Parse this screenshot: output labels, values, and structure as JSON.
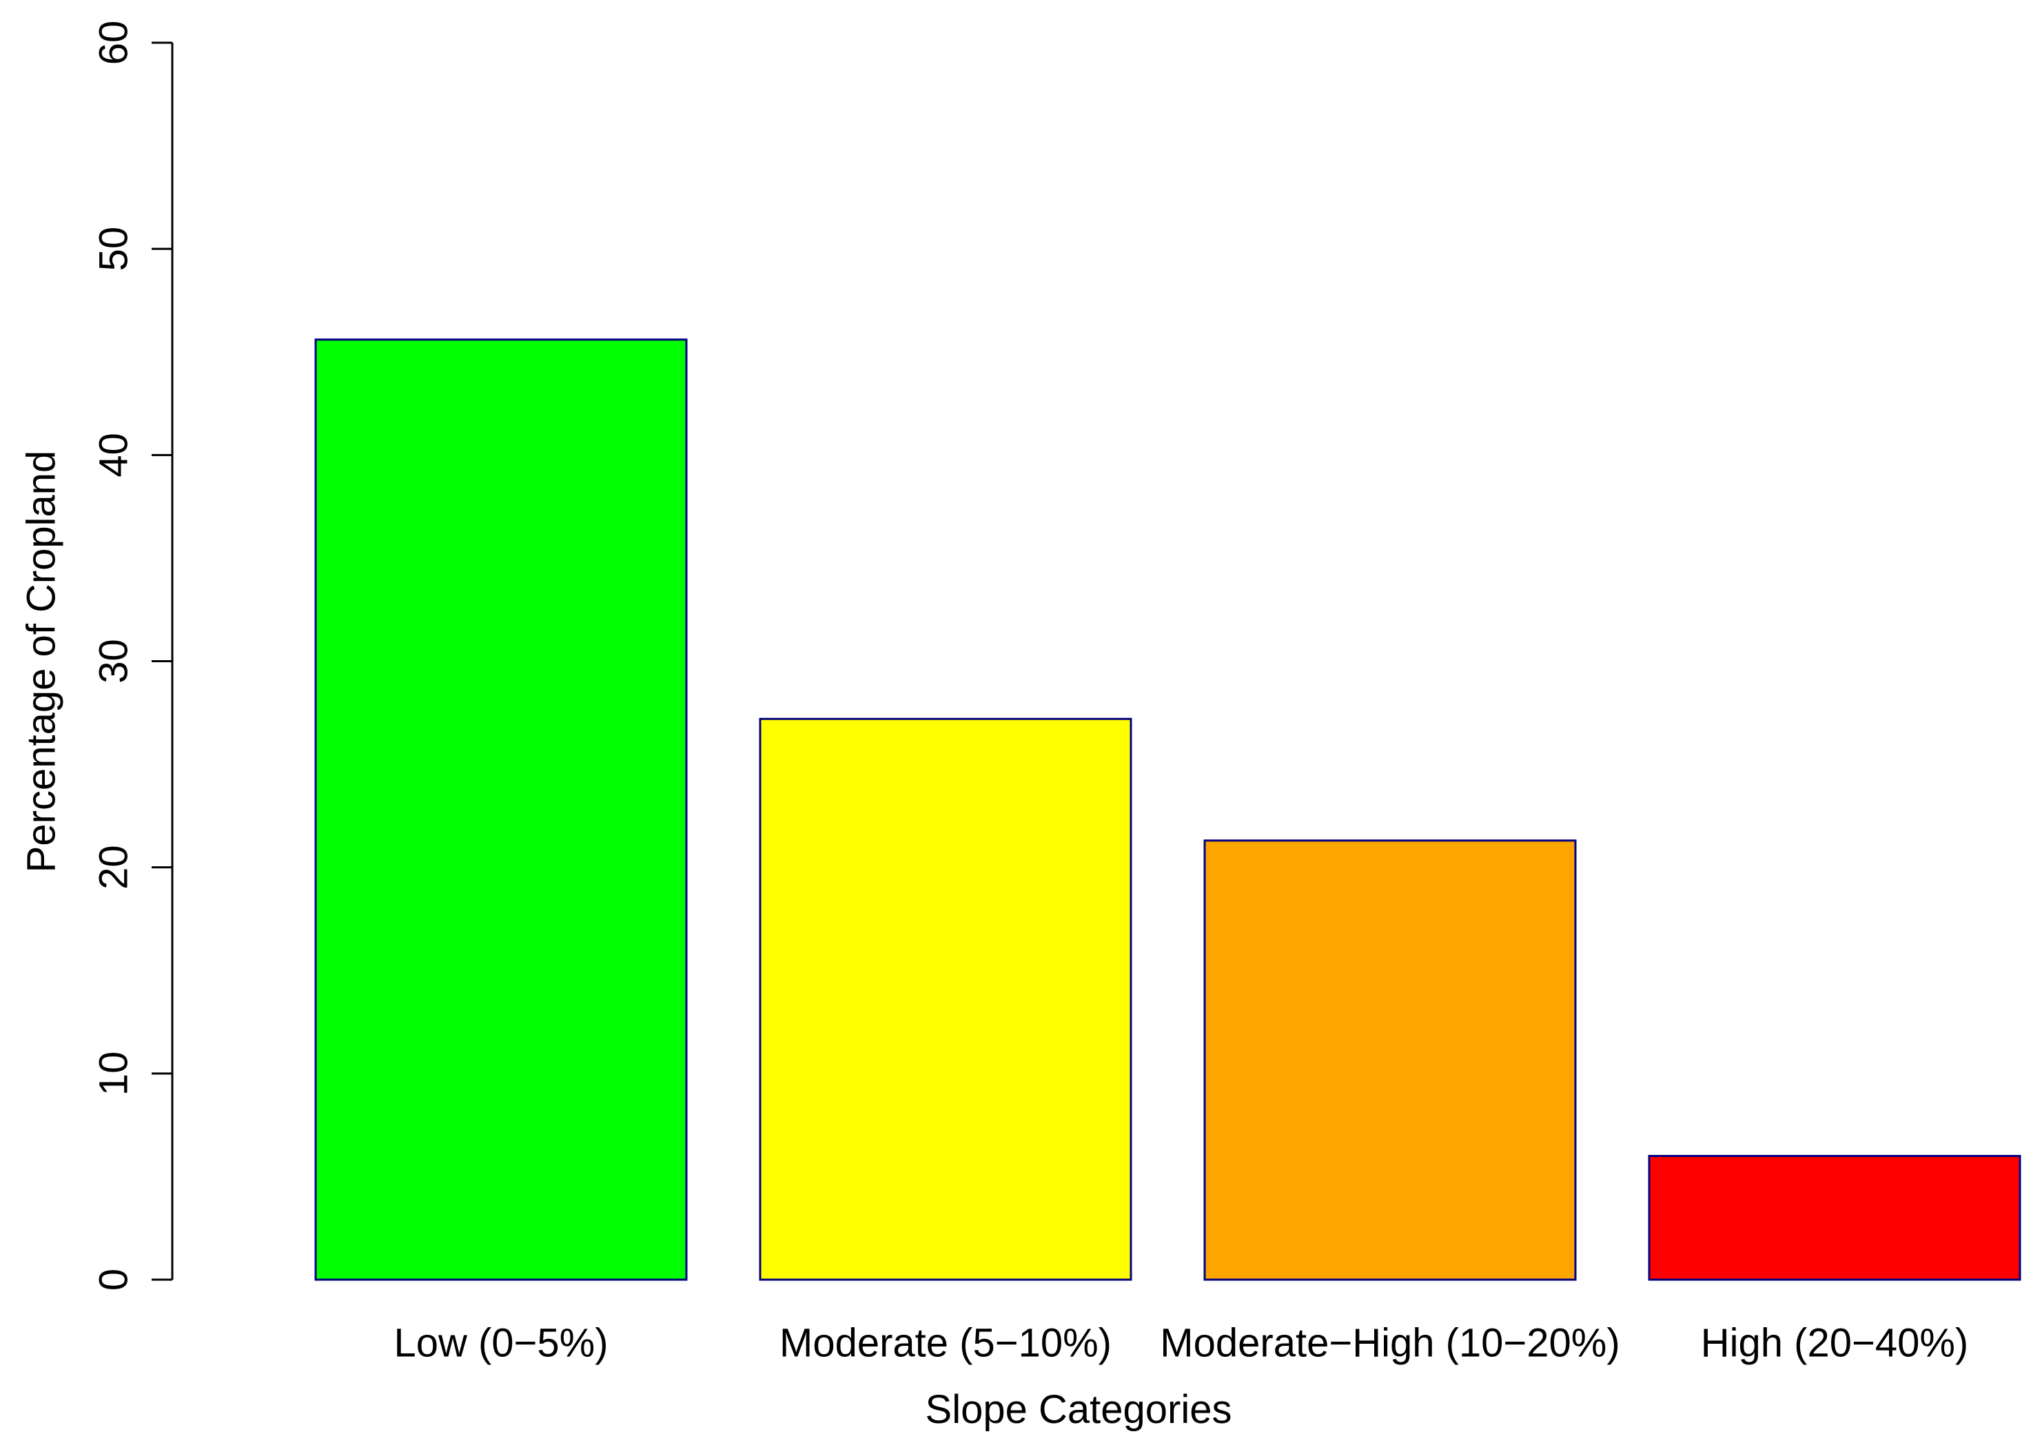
{
  "chart_data": {
    "type": "bar",
    "title": "",
    "xlabel": "Slope Categories",
    "ylabel": "Percentage of Cropland",
    "ylim": [
      0,
      60
    ],
    "yticks": [
      0,
      10,
      20,
      30,
      40,
      50,
      60
    ],
    "categories": [
      "Low (0−5%)",
      "Moderate (5−10%)",
      "Moderate−High (10−20%)",
      "High (20−40%)"
    ],
    "values": [
      45.6,
      27.2,
      21.3,
      6.0
    ],
    "bar_colors": [
      "#00ff00",
      "#ffff00",
      "#ffa500",
      "#ff0000"
    ],
    "bar_border_color": "#000080",
    "grid": false,
    "legend": "none"
  }
}
